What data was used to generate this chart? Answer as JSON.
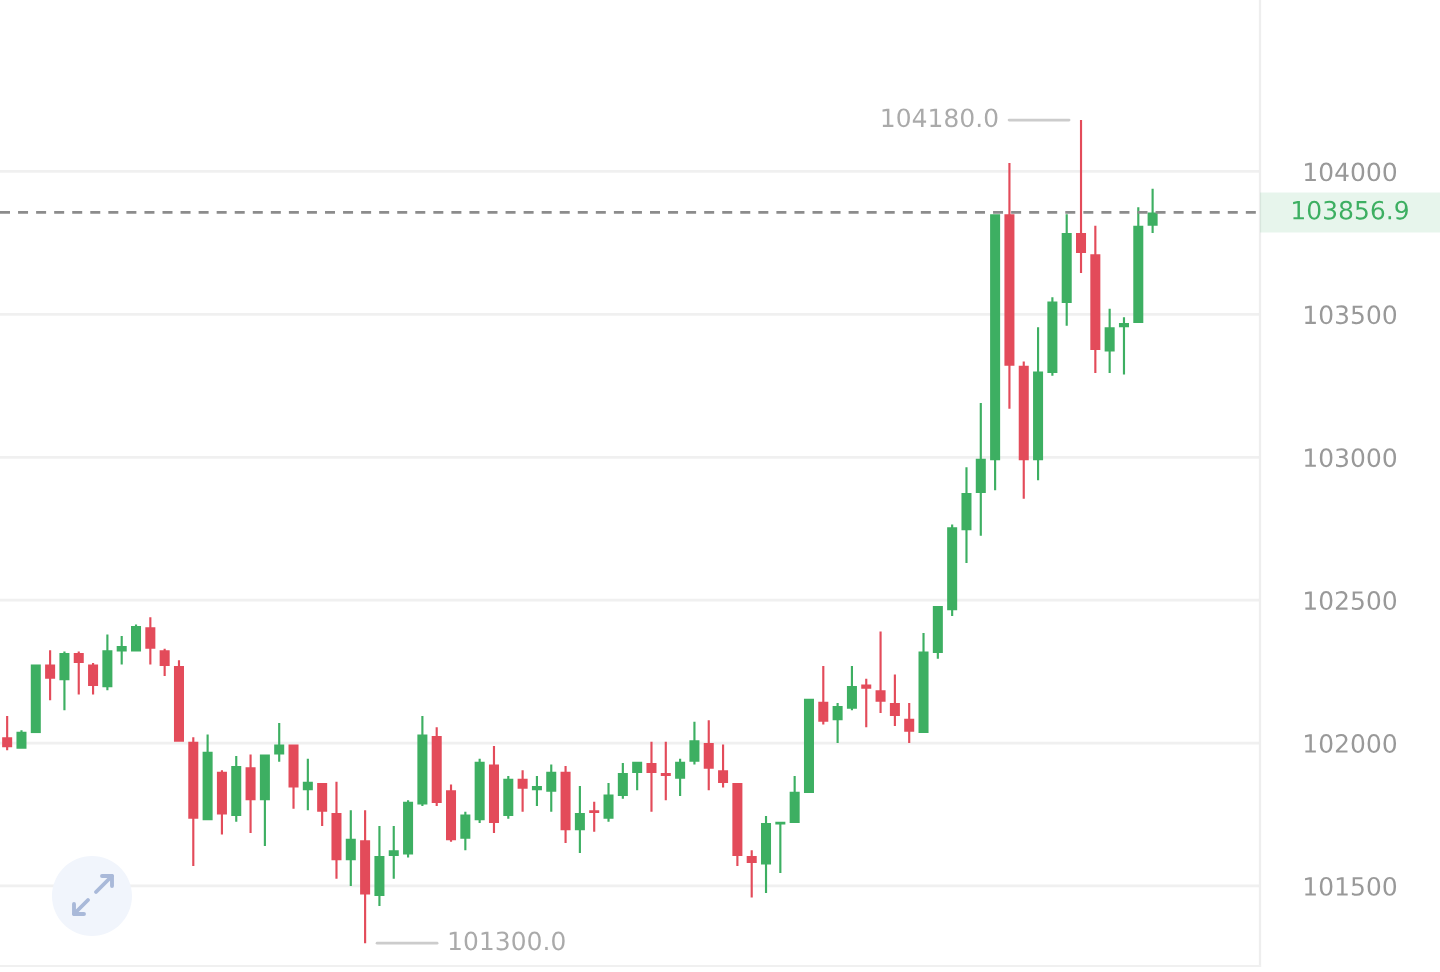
{
  "chart_data": {
    "type": "candlestick",
    "categories": [
      null,
      null,
      null,
      null,
      null,
      null,
      null,
      null,
      null,
      null,
      null,
      null,
      null,
      null,
      null,
      null,
      null,
      null,
      null,
      null,
      null,
      null,
      null,
      null,
      null,
      null,
      null,
      null,
      null,
      null,
      null,
      null,
      null,
      null,
      null,
      null,
      null,
      null,
      null,
      null,
      null,
      null,
      null,
      null,
      null,
      null,
      null,
      null,
      null,
      null,
      null,
      null,
      null,
      null,
      null,
      null,
      null,
      null,
      null,
      null,
      null,
      null,
      null,
      null,
      null,
      null,
      null,
      null,
      null,
      null,
      null,
      null,
      null,
      null,
      null,
      null,
      null,
      null,
      null,
      null,
      null,
      null,
      null,
      null,
      null,
      null,
      null,
      null
    ],
    "ohlc": [
      [
        102020,
        102095,
        101975,
        101985
      ],
      [
        101980,
        102045,
        101980,
        102040
      ],
      [
        102035,
        102275,
        102035,
        102275
      ],
      [
        102275,
        102325,
        102150,
        102225
      ],
      [
        102220,
        102320,
        102115,
        102315
      ],
      [
        102315,
        102320,
        102170,
        102280
      ],
      [
        102275,
        102280,
        102170,
        102200
      ],
      [
        102195,
        102380,
        102185,
        102325
      ],
      [
        102320,
        102375,
        102275,
        102340
      ],
      [
        102320,
        102415,
        102320,
        102410
      ],
      [
        102405,
        102440,
        102275,
        102330
      ],
      [
        102325,
        102330,
        102235,
        102270
      ],
      [
        102270,
        102290,
        102005,
        102005
      ],
      [
        102005,
        102020,
        101570,
        101735
      ],
      [
        101730,
        102030,
        101730,
        101970
      ],
      [
        101900,
        101905,
        101680,
        101750
      ],
      [
        101745,
        101955,
        101725,
        101920
      ],
      [
        101915,
        101960,
        101685,
        101800
      ],
      [
        101800,
        101960,
        101640,
        101960
      ],
      [
        101960,
        102070,
        101935,
        101995
      ],
      [
        101995,
        101995,
        101770,
        101845
      ],
      [
        101835,
        101945,
        101765,
        101865
      ],
      [
        101860,
        101860,
        101710,
        101760
      ],
      [
        101755,
        101865,
        101525,
        101590
      ],
      [
        101590,
        101765,
        101500,
        101665
      ],
      [
        101660,
        101765,
        101300,
        101470
      ],
      [
        101465,
        101710,
        101430,
        101605
      ],
      [
        101605,
        101710,
        101525,
        101625
      ],
      [
        101610,
        101800,
        101600,
        101795
      ],
      [
        101785,
        102095,
        101780,
        102030
      ],
      [
        102025,
        102055,
        101780,
        101790
      ],
      [
        101835,
        101855,
        101655,
        101660
      ],
      [
        101665,
        101760,
        101625,
        101750
      ],
      [
        101730,
        101945,
        101720,
        101935
      ],
      [
        101925,
        101990,
        101685,
        101720
      ],
      [
        101745,
        101885,
        101735,
        101875
      ],
      [
        101875,
        101905,
        101760,
        101840
      ],
      [
        101835,
        101885,
        101780,
        101850
      ],
      [
        101830,
        101925,
        101760,
        101900
      ],
      [
        101900,
        101920,
        101650,
        101695
      ],
      [
        101695,
        101850,
        101615,
        101755
      ],
      [
        101765,
        101795,
        101690,
        101755
      ],
      [
        101735,
        101860,
        101725,
        101820
      ],
      [
        101815,
        101930,
        101805,
        101895
      ],
      [
        101895,
        101935,
        101835,
        101935
      ],
      [
        101930,
        102005,
        101760,
        101895
      ],
      [
        101895,
        102005,
        101800,
        101885
      ],
      [
        101875,
        101945,
        101815,
        101935
      ],
      [
        101935,
        102075,
        101925,
        102010
      ],
      [
        102000,
        102080,
        101835,
        101910
      ],
      [
        101905,
        101995,
        101845,
        101860
      ],
      [
        101860,
        101860,
        101570,
        101605
      ],
      [
        101605,
        101625,
        101460,
        101580
      ],
      [
        101575,
        101745,
        101475,
        101720
      ],
      [
        101715,
        101725,
        101545,
        101725
      ],
      [
        101720,
        101885,
        101720,
        101830
      ],
      [
        101825,
        102155,
        101825,
        102155
      ],
      [
        102145,
        102270,
        102065,
        102075
      ],
      [
        102080,
        102140,
        102000,
        102130
      ],
      [
        102120,
        102270,
        102115,
        102200
      ],
      [
        102205,
        102225,
        102055,
        102190
      ],
      [
        102185,
        102390,
        102105,
        102145
      ],
      [
        102140,
        102240,
        102060,
        102095
      ],
      [
        102085,
        102140,
        102000,
        102040
      ],
      [
        102035,
        102385,
        102035,
        102320
      ],
      [
        102315,
        102480,
        102295,
        102480
      ],
      [
        102465,
        102765,
        102445,
        102755
      ],
      [
        102745,
        102965,
        102630,
        102875
      ],
      [
        102875,
        103190,
        102725,
        102995
      ],
      [
        102990,
        103850,
        102885,
        103850
      ],
      [
        103850,
        104030,
        103170,
        103320
      ],
      [
        103320,
        103335,
        102855,
        102990
      ],
      [
        102990,
        103455,
        102920,
        103300
      ],
      [
        103295,
        103560,
        103285,
        103545
      ],
      [
        103540,
        103850,
        103460,
        103785
      ],
      [
        103785,
        104180,
        103645,
        103715
      ],
      [
        103710,
        103810,
        103295,
        103375
      ],
      [
        103370,
        103520,
        103295,
        103455
      ],
      [
        103455,
        103490,
        103290,
        103470
      ],
      [
        103470,
        103875,
        103470,
        103810
      ],
      [
        103810,
        103940,
        103785,
        103856.9
      ],
      null,
      null,
      null,
      null,
      null,
      null,
      null
    ],
    "colors": [
      "#e34b5a",
      "#3daf62",
      "#3daf62",
      "#e34b5a",
      "#3daf62",
      "#e34b5a",
      "#e34b5a",
      "#3daf62",
      "#3daf62",
      "#3daf62",
      "#e34b5a",
      "#e34b5a",
      "#e34b5a",
      "#e34b5a",
      "#3daf62",
      "#e34b5a",
      "#3daf62",
      "#e34b5a",
      "#3daf62",
      "#3daf62",
      "#e34b5a",
      "#3daf62",
      "#e34b5a",
      "#e34b5a",
      "#3daf62",
      "#e34b5a",
      "#3daf62",
      "#3daf62",
      "#3daf62",
      "#3daf62",
      "#e34b5a",
      "#e34b5a",
      "#3daf62",
      "#3daf62",
      "#e34b5a",
      "#3daf62",
      "#e34b5a",
      "#3daf62",
      "#3daf62",
      "#e34b5a",
      "#3daf62",
      "#e34b5a",
      "#3daf62",
      "#3daf62",
      "#3daf62",
      "#e34b5a",
      "#e34b5a",
      "#3daf62",
      "#3daf62",
      "#e34b5a",
      "#e34b5a",
      "#e34b5a",
      "#e34b5a",
      "#3daf62",
      "#3daf62",
      "#3daf62",
      "#3daf62",
      "#e34b5a",
      "#3daf62",
      "#3daf62",
      "#e34b5a",
      "#e34b5a",
      "#e34b5a",
      "#e34b5a",
      "#3daf62",
      "#3daf62",
      "#3daf62",
      "#3daf62",
      "#3daf62",
      "#3daf62",
      "#e34b5a",
      "#e34b5a",
      "#3daf62",
      "#3daf62",
      "#3daf62",
      "#e34b5a",
      "#e34b5a",
      "#3daf62",
      "#3daf62",
      "#3daf62",
      "#3daf62",
      null,
      null,
      null,
      null,
      null,
      null,
      null
    ],
    "ylim": [
      101220,
      104600
    ],
    "yticks": [
      101500,
      102000,
      102500,
      103000,
      103500,
      104000
    ],
    "grid": "y",
    "ref_lines": [
      {
        "axis": "y",
        "value": 103856.9,
        "label": "103856.9",
        "color": "#8c8c8c",
        "line_style": "dashed"
      }
    ],
    "annotations": [
      "104180.0",
      "101300.0"
    ]
  }
}
